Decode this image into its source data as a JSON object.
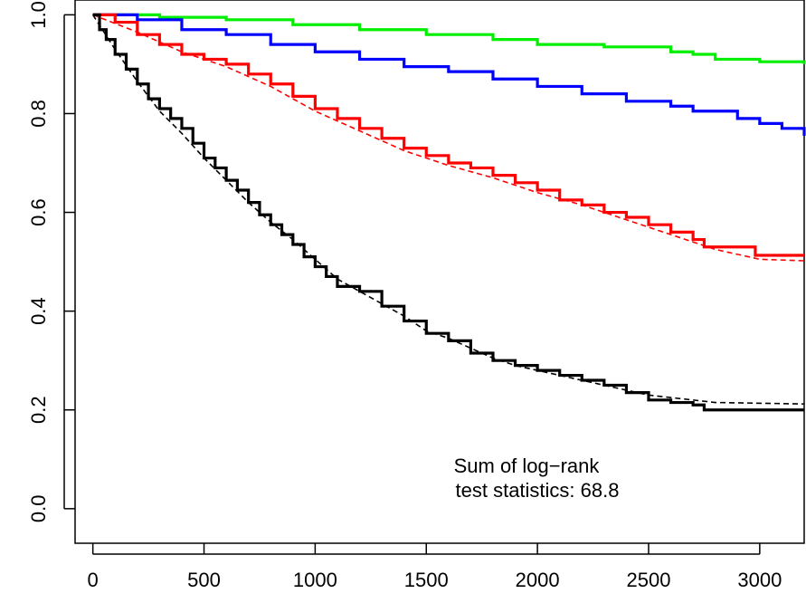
{
  "chart_data": {
    "type": "line",
    "title": "",
    "xlabel": "",
    "ylabel": "",
    "xlim": [
      0,
      3200
    ],
    "ylim": [
      0,
      1
    ],
    "x_ticks": [
      0,
      500,
      1000,
      1500,
      2000,
      2500,
      3000
    ],
    "y_ticks": [
      0.0,
      0.2,
      0.4,
      0.6,
      0.8,
      1.0
    ],
    "x_tick_labels": [
      "0",
      "500",
      "1000",
      "1500",
      "2000",
      "2500",
      "3000"
    ],
    "y_tick_labels": [
      "0.0",
      "0.2",
      "0.4",
      "0.6",
      "0.8",
      "1.0"
    ],
    "grid": false,
    "legend": false,
    "annotation": {
      "line1": "Sum of log−rank",
      "line2": "test statistics: 68.8"
    },
    "series": [
      {
        "color": "#00ee00",
        "style": "step",
        "points": [
          [
            0,
            1.0
          ],
          [
            300,
            0.995
          ],
          [
            600,
            0.99
          ],
          [
            900,
            0.98
          ],
          [
            1200,
            0.97
          ],
          [
            1500,
            0.96
          ],
          [
            1800,
            0.95
          ],
          [
            2000,
            0.94
          ],
          [
            2300,
            0.935
          ],
          [
            2600,
            0.925
          ],
          [
            2700,
            0.92
          ],
          [
            2800,
            0.91
          ],
          [
            3000,
            0.905
          ],
          [
            3200,
            0.9
          ]
        ]
      },
      {
        "color": "#0000ff",
        "style": "step",
        "points": [
          [
            0,
            1.0
          ],
          [
            200,
            0.99
          ],
          [
            400,
            0.97
          ],
          [
            600,
            0.96
          ],
          [
            800,
            0.94
          ],
          [
            1000,
            0.925
          ],
          [
            1200,
            0.91
          ],
          [
            1400,
            0.895
          ],
          [
            1600,
            0.885
          ],
          [
            1800,
            0.87
          ],
          [
            2000,
            0.855
          ],
          [
            2200,
            0.84
          ],
          [
            2400,
            0.825
          ],
          [
            2600,
            0.815
          ],
          [
            2700,
            0.805
          ],
          [
            2900,
            0.79
          ],
          [
            3000,
            0.78
          ],
          [
            3100,
            0.77
          ],
          [
            3200,
            0.755
          ]
        ]
      },
      {
        "color": "#ff0000",
        "style": "step",
        "points": [
          [
            0,
            1.0
          ],
          [
            100,
            0.985
          ],
          [
            200,
            0.96
          ],
          [
            300,
            0.94
          ],
          [
            400,
            0.92
          ],
          [
            500,
            0.91
          ],
          [
            600,
            0.9
          ],
          [
            700,
            0.88
          ],
          [
            800,
            0.86
          ],
          [
            900,
            0.835
          ],
          [
            1000,
            0.81
          ],
          [
            1100,
            0.79
          ],
          [
            1200,
            0.77
          ],
          [
            1300,
            0.75
          ],
          [
            1400,
            0.73
          ],
          [
            1500,
            0.715
          ],
          [
            1600,
            0.7
          ],
          [
            1700,
            0.69
          ],
          [
            1800,
            0.675
          ],
          [
            1900,
            0.66
          ],
          [
            2000,
            0.645
          ],
          [
            2100,
            0.625
          ],
          [
            2200,
            0.615
          ],
          [
            2300,
            0.6
          ],
          [
            2400,
            0.59
          ],
          [
            2500,
            0.575
          ],
          [
            2600,
            0.56
          ],
          [
            2700,
            0.545
          ],
          [
            2750,
            0.53
          ],
          [
            2980,
            0.53
          ],
          [
            2980,
            0.513
          ],
          [
            3200,
            0.513
          ]
        ]
      },
      {
        "color": "#ff0000",
        "style": "dashed",
        "points": [
          [
            0,
            1.0
          ],
          [
            200,
            0.965
          ],
          [
            400,
            0.925
          ],
          [
            600,
            0.895
          ],
          [
            800,
            0.855
          ],
          [
            1000,
            0.805
          ],
          [
            1200,
            0.765
          ],
          [
            1400,
            0.725
          ],
          [
            1600,
            0.695
          ],
          [
            1800,
            0.67
          ],
          [
            2000,
            0.64
          ],
          [
            2200,
            0.615
          ],
          [
            2400,
            0.585
          ],
          [
            2600,
            0.555
          ],
          [
            2800,
            0.525
          ],
          [
            3000,
            0.505
          ],
          [
            3200,
            0.502
          ]
        ]
      },
      {
        "color": "#000000",
        "style": "step",
        "points": [
          [
            0,
            1.0
          ],
          [
            30,
            0.97
          ],
          [
            60,
            0.95
          ],
          [
            100,
            0.92
          ],
          [
            150,
            0.89
          ],
          [
            200,
            0.86
          ],
          [
            250,
            0.83
          ],
          [
            300,
            0.81
          ],
          [
            350,
            0.79
          ],
          [
            400,
            0.77
          ],
          [
            450,
            0.74
          ],
          [
            500,
            0.71
          ],
          [
            550,
            0.69
          ],
          [
            600,
            0.665
          ],
          [
            650,
            0.645
          ],
          [
            700,
            0.62
          ],
          [
            750,
            0.595
          ],
          [
            800,
            0.575
          ],
          [
            850,
            0.555
          ],
          [
            900,
            0.535
          ],
          [
            950,
            0.51
          ],
          [
            1000,
            0.49
          ],
          [
            1050,
            0.47
          ],
          [
            1100,
            0.45
          ],
          [
            1200,
            0.44
          ],
          [
            1300,
            0.41
          ],
          [
            1400,
            0.38
          ],
          [
            1500,
            0.355
          ],
          [
            1600,
            0.34
          ],
          [
            1700,
            0.315
          ],
          [
            1800,
            0.3
          ],
          [
            1900,
            0.29
          ],
          [
            2000,
            0.28
          ],
          [
            2100,
            0.27
          ],
          [
            2200,
            0.26
          ],
          [
            2300,
            0.25
          ],
          [
            2400,
            0.235
          ],
          [
            2500,
            0.22
          ],
          [
            2600,
            0.215
          ],
          [
            2700,
            0.21
          ],
          [
            2750,
            0.2
          ],
          [
            3200,
            0.2
          ]
        ]
      },
      {
        "color": "#000000",
        "style": "dashed",
        "points": [
          [
            0,
            1.0
          ],
          [
            100,
            0.93
          ],
          [
            200,
            0.865
          ],
          [
            300,
            0.805
          ],
          [
            400,
            0.76
          ],
          [
            500,
            0.71
          ],
          [
            600,
            0.665
          ],
          [
            700,
            0.62
          ],
          [
            800,
            0.58
          ],
          [
            900,
            0.545
          ],
          [
            1000,
            0.505
          ],
          [
            1100,
            0.465
          ],
          [
            1200,
            0.44
          ],
          [
            1300,
            0.415
          ],
          [
            1400,
            0.39
          ],
          [
            1500,
            0.36
          ],
          [
            1600,
            0.345
          ],
          [
            1700,
            0.325
          ],
          [
            1800,
            0.305
          ],
          [
            1900,
            0.29
          ],
          [
            2000,
            0.28
          ],
          [
            2100,
            0.27
          ],
          [
            2200,
            0.26
          ],
          [
            2300,
            0.25
          ],
          [
            2400,
            0.24
          ],
          [
            2500,
            0.23
          ],
          [
            2600,
            0.225
          ],
          [
            2700,
            0.22
          ],
          [
            2800,
            0.215
          ],
          [
            3200,
            0.212
          ]
        ]
      }
    ]
  }
}
